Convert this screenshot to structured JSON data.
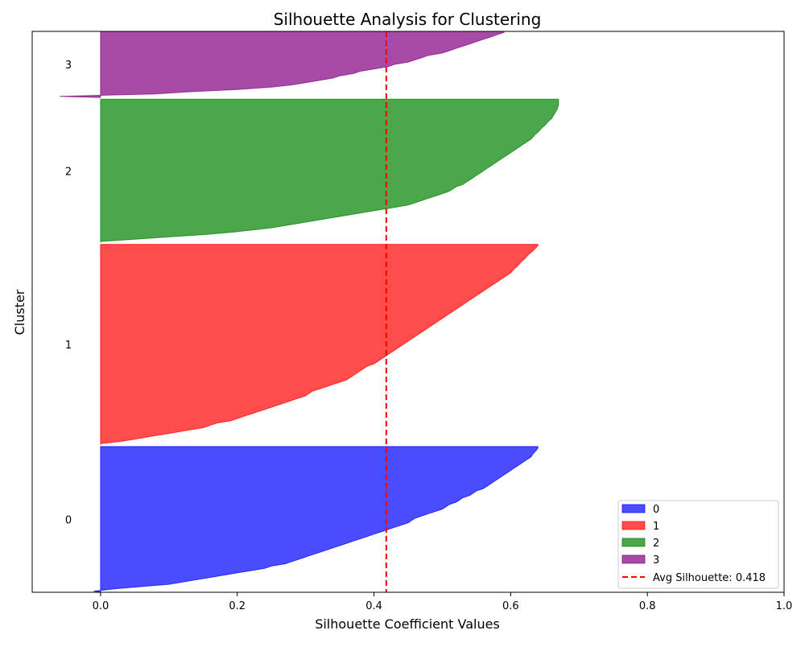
{
  "chart_data": {
    "type": "area",
    "title": "Silhouette Analysis for Clustering",
    "xlabel": "Silhouette Coefficient Values",
    "ylabel": "Cluster",
    "xlim": [
      -0.1,
      1.0
    ],
    "x_ticks": [
      "0.0",
      "0.2",
      "0.4",
      "0.6",
      "0.8",
      "1.0"
    ],
    "x_tick_values": [
      0.0,
      0.2,
      0.4,
      0.6,
      0.8,
      1.0
    ],
    "grid": false,
    "legend_position": "lower-right",
    "avg_silhouette": {
      "value": 0.418,
      "label": "Avg Silhouette: 0.418",
      "color": "#ff0000"
    },
    "clusters": [
      {
        "name": "0",
        "color": "#0000ff",
        "size": 64,
        "min": -0.01,
        "max": 0.64,
        "values": [
          -0.01,
          0.02,
          0.06,
          0.1,
          0.12,
          0.14,
          0.16,
          0.18,
          0.2,
          0.22,
          0.24,
          0.25,
          0.27,
          0.28,
          0.29,
          0.3,
          0.31,
          0.32,
          0.33,
          0.34,
          0.35,
          0.36,
          0.37,
          0.38,
          0.39,
          0.4,
          0.41,
          0.42,
          0.43,
          0.44,
          0.45,
          0.455,
          0.46,
          0.47,
          0.48,
          0.49,
          0.5,
          0.505,
          0.51,
          0.52,
          0.525,
          0.53,
          0.54,
          0.545,
          0.55,
          0.56,
          0.565,
          0.57,
          0.575,
          0.58,
          0.585,
          0.59,
          0.595,
          0.6,
          0.605,
          0.61,
          0.615,
          0.62,
          0.625,
          0.63,
          0.632,
          0.635,
          0.638,
          0.64
        ]
      },
      {
        "name": "1",
        "color": "#ff0000",
        "size": 88,
        "min": 0.0,
        "max": 0.64,
        "values": [
          0.0,
          0.03,
          0.05,
          0.07,
          0.09,
          0.11,
          0.13,
          0.15,
          0.16,
          0.17,
          0.19,
          0.2,
          0.21,
          0.22,
          0.23,
          0.24,
          0.25,
          0.26,
          0.27,
          0.28,
          0.29,
          0.3,
          0.305,
          0.31,
          0.32,
          0.33,
          0.34,
          0.35,
          0.36,
          0.365,
          0.37,
          0.375,
          0.38,
          0.385,
          0.39,
          0.4,
          0.405,
          0.41,
          0.415,
          0.42,
          0.425,
          0.43,
          0.435,
          0.44,
          0.445,
          0.45,
          0.455,
          0.46,
          0.465,
          0.47,
          0.475,
          0.48,
          0.485,
          0.49,
          0.495,
          0.5,
          0.505,
          0.51,
          0.515,
          0.52,
          0.525,
          0.53,
          0.535,
          0.54,
          0.545,
          0.55,
          0.555,
          0.56,
          0.565,
          0.57,
          0.575,
          0.58,
          0.585,
          0.59,
          0.595,
          0.6,
          0.603,
          0.606,
          0.61,
          0.613,
          0.616,
          0.62,
          0.623,
          0.626,
          0.63,
          0.634,
          0.637,
          0.64
        ]
      },
      {
        "name": "2",
        "color": "#008000",
        "size": 63,
        "min": 0.0,
        "max": 0.67,
        "values": [
          0.0,
          0.05,
          0.1,
          0.15,
          0.19,
          0.22,
          0.25,
          0.27,
          0.29,
          0.31,
          0.33,
          0.35,
          0.37,
          0.39,
          0.41,
          0.43,
          0.45,
          0.46,
          0.47,
          0.48,
          0.49,
          0.5,
          0.51,
          0.515,
          0.52,
          0.53,
          0.535,
          0.54,
          0.545,
          0.55,
          0.555,
          0.56,
          0.565,
          0.57,
          0.575,
          0.58,
          0.585,
          0.59,
          0.595,
          0.6,
          0.605,
          0.61,
          0.615,
          0.62,
          0.625,
          0.63,
          0.633,
          0.636,
          0.64,
          0.643,
          0.646,
          0.65,
          0.653,
          0.656,
          0.66,
          0.662,
          0.664,
          0.666,
          0.668,
          0.669,
          0.67,
          0.67,
          0.67
        ]
      },
      {
        "name": "3",
        "color": "#800080",
        "size": 29,
        "min": -0.06,
        "max": 0.59,
        "values": [
          -0.06,
          0.08,
          0.13,
          0.2,
          0.25,
          0.28,
          0.3,
          0.32,
          0.34,
          0.35,
          0.37,
          0.38,
          0.4,
          0.42,
          0.43,
          0.45,
          0.46,
          0.47,
          0.48,
          0.5,
          0.51,
          0.52,
          0.53,
          0.54,
          0.55,
          0.56,
          0.57,
          0.58,
          0.59
        ]
      }
    ]
  }
}
